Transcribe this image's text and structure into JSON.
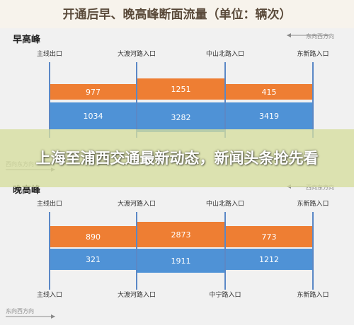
{
  "header": {
    "title": "开通后早、晚高峰断面流量（单位：辆次）"
  },
  "overlay": {
    "headline": "上海至浦西交通最新动态，新闻头条抢先看"
  },
  "colors": {
    "header_bg": "#f7f3ec",
    "header_text": "#5a4a3a",
    "orange": "#ee7e33",
    "blue": "#4f92d6",
    "station_line": "#5b88c6",
    "axis": "#9aa4ad"
  },
  "chart_data": [
    {
      "type": "bar",
      "panel_label": "早高峰",
      "direction_label_top": "东向西方向",
      "direction_label_bottom": "西向东方向",
      "stations_top": [
        "主线出口",
        "大渡河路入口",
        "中山北路入口",
        "东新路入口"
      ],
      "stations_bottom": [],
      "series": [
        {
          "color": "orange",
          "values": [
            977,
            1251,
            415
          ]
        },
        {
          "color": "blue",
          "values": [
            1034,
            3282,
            3419
          ]
        }
      ]
    },
    {
      "type": "bar",
      "panel_label": "晚高峰",
      "direction_label_top": "西向东方向",
      "direction_label_bottom": "东向西方向",
      "stations_top": [
        "主线出口",
        "大渡河路入口",
        "中山北路入口",
        "东新路入口"
      ],
      "stations_bottom": [
        "主线入口",
        "大渡河路入口",
        "中宁路入口",
        "东新路入口"
      ],
      "series": [
        {
          "color": "orange",
          "values": [
            890,
            2873,
            773
          ]
        },
        {
          "color": "blue",
          "values": [
            321,
            1911,
            1212
          ]
        }
      ]
    }
  ]
}
